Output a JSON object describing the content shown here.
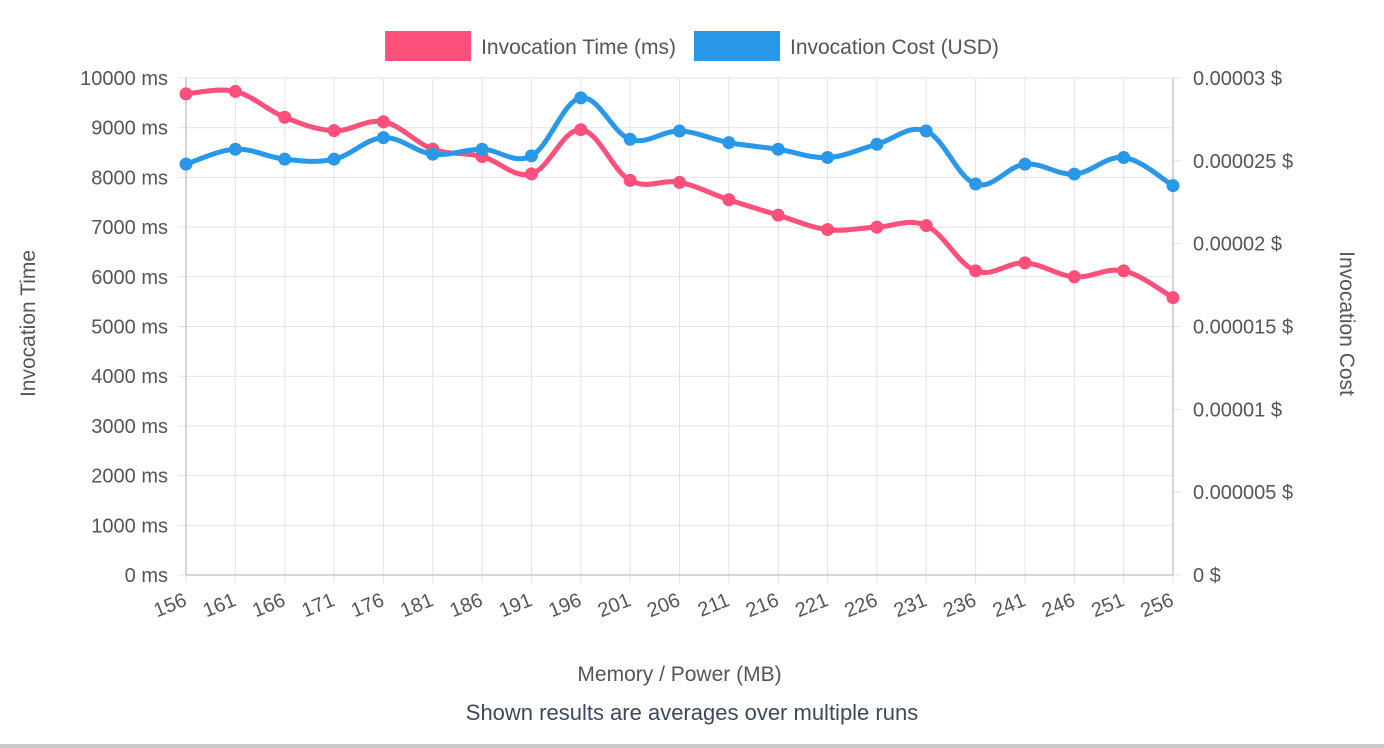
{
  "chart_data": {
    "type": "line",
    "x": [
      156,
      161,
      166,
      171,
      176,
      181,
      186,
      191,
      196,
      201,
      206,
      211,
      216,
      221,
      226,
      231,
      236,
      241,
      246,
      251,
      256
    ],
    "xlabel": "Memory / Power (MB)",
    "legend_position": "top",
    "grid": true,
    "y_axes": {
      "left": {
        "label": "Invocation Time",
        "range": [
          0,
          10000
        ],
        "ticks": [
          "0 ms",
          "1000 ms",
          "2000 ms",
          "3000 ms",
          "4000 ms",
          "5000 ms",
          "6000 ms",
          "7000 ms",
          "8000 ms",
          "9000 ms",
          "10000 ms"
        ]
      },
      "right": {
        "label": "Invocation Cost",
        "range": [
          0,
          3e-05
        ],
        "ticks": [
          "0 $",
          "0.000005 $",
          "0.00001 $",
          "0.000015 $",
          "0.00002 $",
          "0.000025 $",
          "0.00003 $"
        ]
      }
    },
    "series": [
      {
        "name": "Invocation Time (ms)",
        "axis": "left",
        "color": "#ff4f7b",
        "values": [
          9680,
          9730,
          9210,
          8940,
          9120,
          8570,
          8420,
          8070,
          8960,
          7940,
          7900,
          7550,
          7240,
          6950,
          7000,
          7030,
          6120,
          6280,
          6000,
          6120,
          5580
        ]
      },
      {
        "name": "Invocation Cost (USD)",
        "axis": "right",
        "color": "#2a98e8",
        "values": [
          2.48e-05,
          2.57e-05,
          2.51e-05,
          2.51e-05,
          2.64e-05,
          2.54e-05,
          2.57e-05,
          2.53e-05,
          2.88e-05,
          2.63e-05,
          2.68e-05,
          2.61e-05,
          2.57e-05,
          2.52e-05,
          2.6e-05,
          2.68e-05,
          2.36e-05,
          2.48e-05,
          2.42e-05,
          2.52e-05,
          2.35e-05
        ]
      }
    ]
  },
  "footnote": "Shown results are averages over multiple runs"
}
